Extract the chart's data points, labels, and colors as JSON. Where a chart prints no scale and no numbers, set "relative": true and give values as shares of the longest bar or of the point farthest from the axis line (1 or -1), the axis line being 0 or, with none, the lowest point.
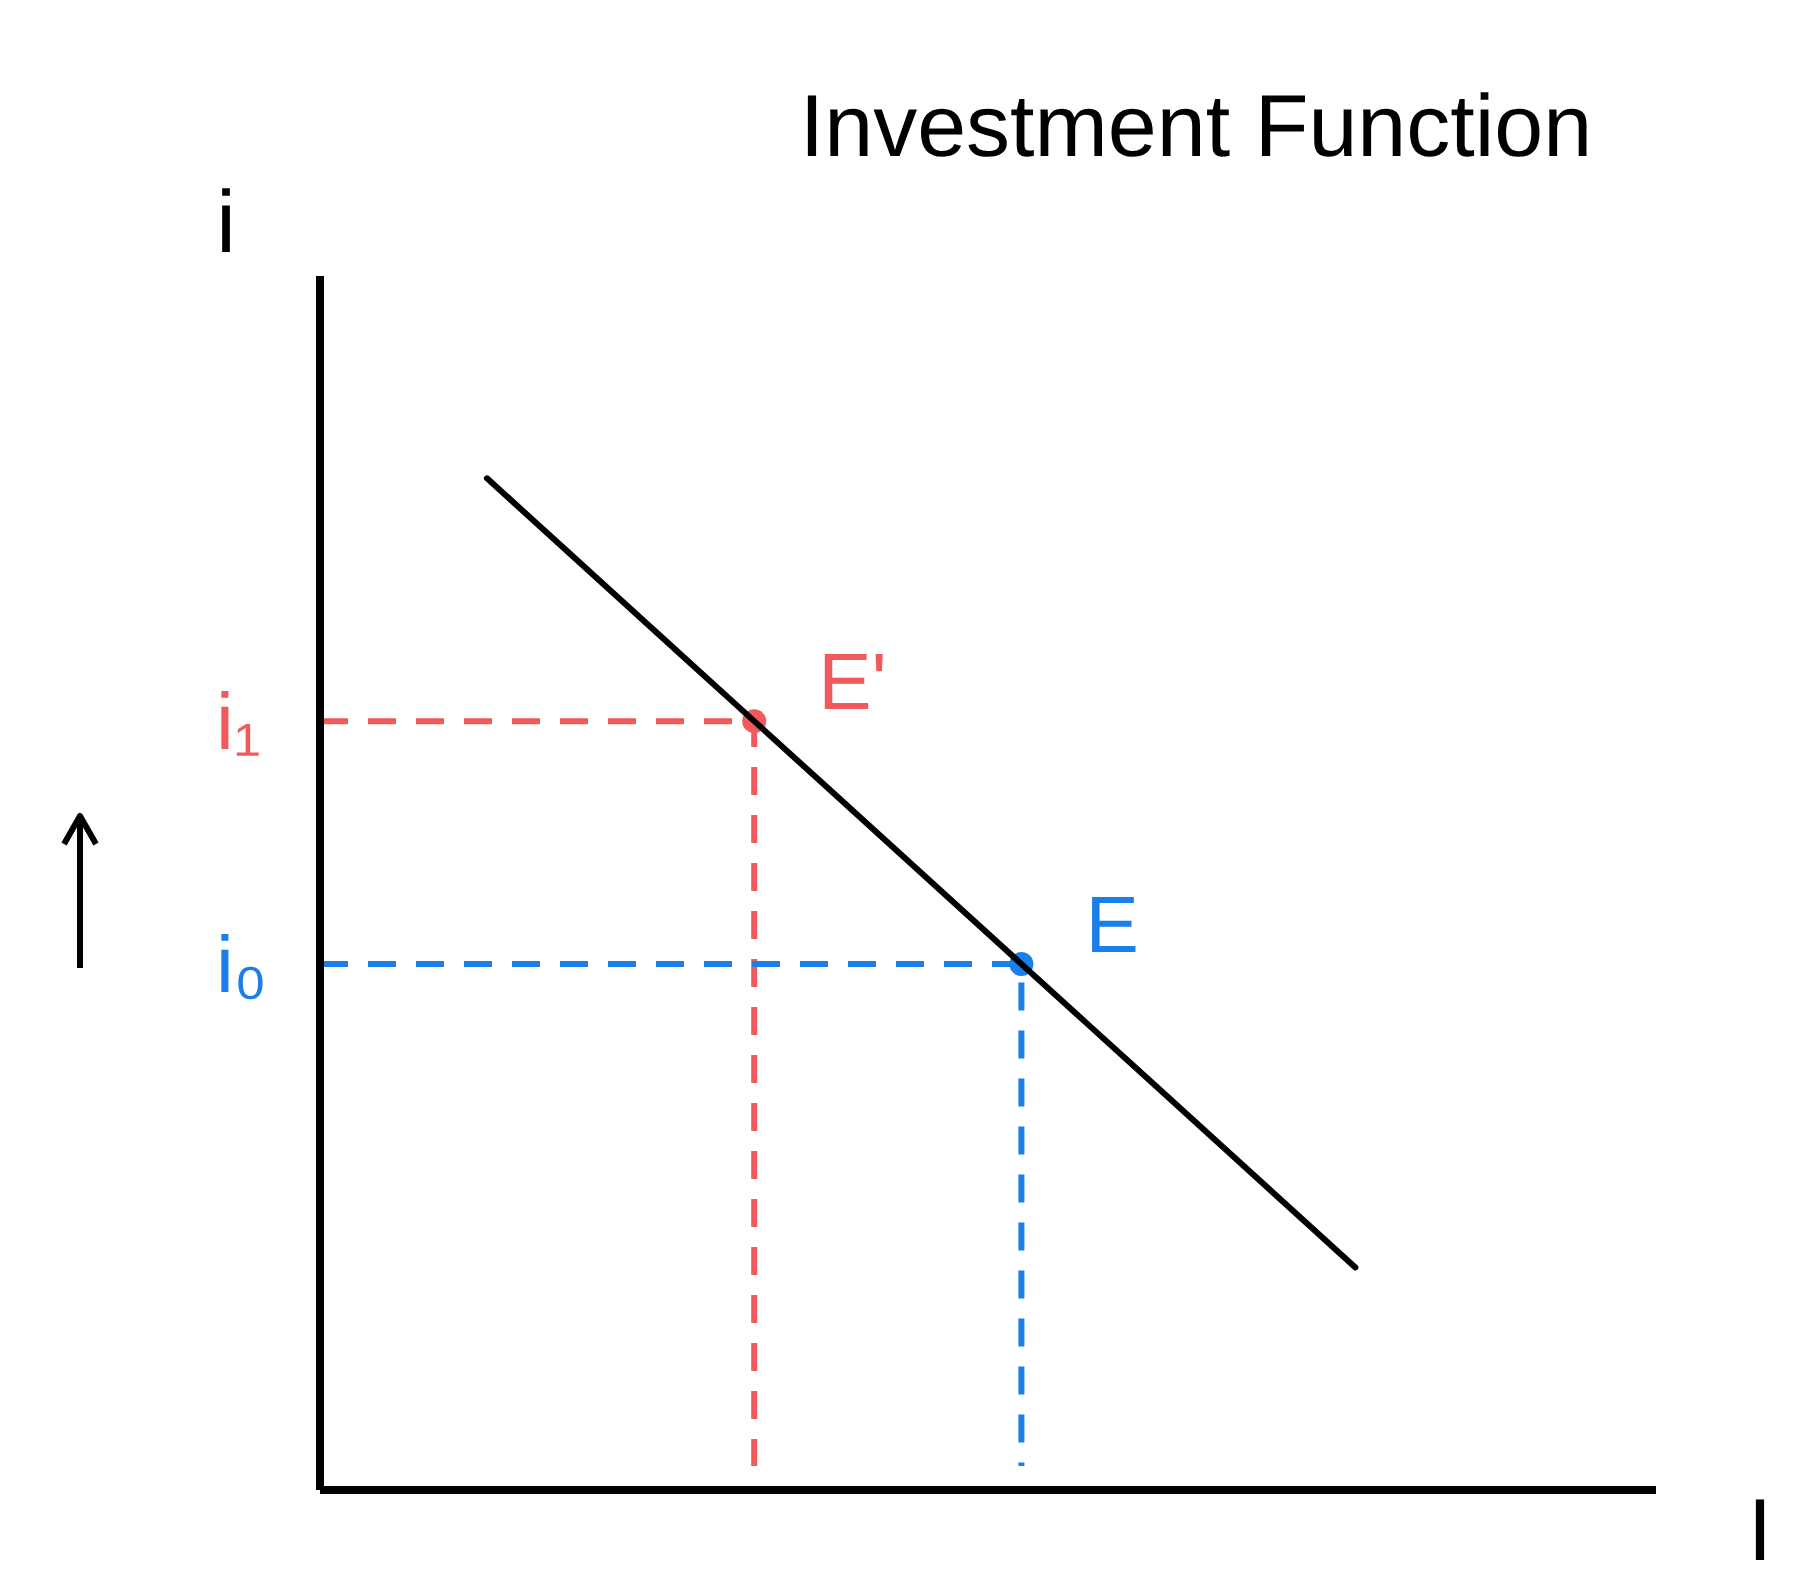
{
  "chart_data": {
    "type": "line",
    "title": "Investment Function",
    "xlabel": "I",
    "ylabel": "i",
    "relative": true,
    "categories": [
      null,
      null,
      null,
      null,
      null,
      null,
      null,
      null,
      null,
      null,
      null,
      null,
      null,
      null,
      null,
      null,
      null,
      null,
      null,
      null
    ],
    "series": [
      {
        "color": "#000000",
        "values": [
          null,
          null,
          1,
          0.94,
          0.88,
          0.82,
          0.76,
          0.7,
          0.64,
          0.58,
          0.52,
          0.46,
          0.4,
          0.34,
          0.28,
          0.22,
          null,
          null,
          null,
          null
        ]
      }
    ],
    "ref_lines": [
      {
        "axis": "y",
        "value": 0.76,
        "label": "i₁",
        "color": "#f05a5a",
        "line_style": "dashed"
      },
      {
        "axis": "y",
        "value": 0.52,
        "label": "i₀",
        "color": "#1a7fe8",
        "line_style": "dashed"
      }
    ],
    "annotations": [
      "E'",
      "E"
    ]
  }
}
